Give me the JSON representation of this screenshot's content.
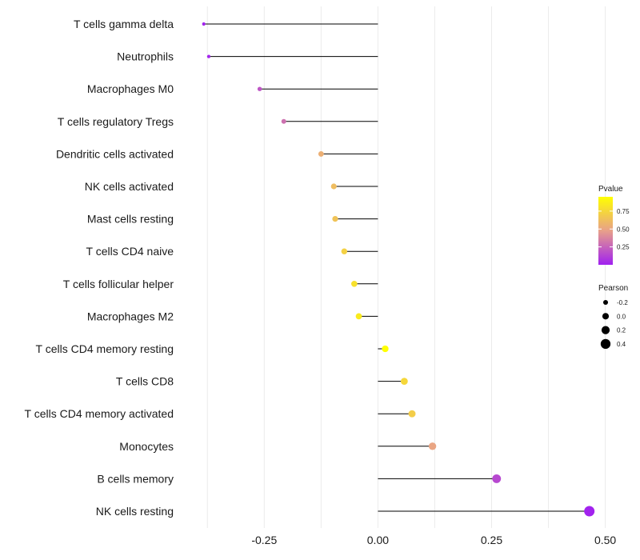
{
  "chart_data": {
    "type": "lollipop",
    "title": "",
    "xlabel": "",
    "ylabel": "",
    "xlim": [
      -0.43,
      0.55
    ],
    "x_ticks": [
      -0.25,
      0.0,
      0.25,
      0.5
    ],
    "x_tick_labels": [
      "-0.25",
      "0.00",
      "0.25",
      "0.50"
    ],
    "grid": "vertical",
    "categories": [
      "T cells gamma delta",
      "Neutrophils",
      "Macrophages M0",
      "T cells regulatory  Tregs",
      "Dendritic cells activated",
      "NK cells activated",
      "Mast cells resting",
      "T cells CD4 naive",
      "T cells follicular helper",
      "Macrophages M2",
      "T cells CD4 memory resting",
      "T cells CD8",
      "T cells CD4 memory activated",
      "Monocytes",
      "B cells memory",
      "NK cells resting"
    ],
    "pearson": [
      -0.383,
      -0.372,
      -0.26,
      -0.207,
      -0.125,
      -0.097,
      -0.094,
      -0.074,
      -0.052,
      -0.042,
      0.016,
      0.058,
      0.075,
      0.12,
      0.261,
      0.465
    ],
    "pvalue": [
      0.01,
      0.02,
      0.2,
      0.3,
      0.55,
      0.62,
      0.65,
      0.72,
      0.8,
      0.85,
      0.95,
      0.75,
      0.7,
      0.5,
      0.15,
      0.01
    ],
    "legend": {
      "pvalue": {
        "title": "Pvalue",
        "ticks": [
          0.25,
          0.5,
          0.75
        ],
        "tick_labels": [
          "0.25",
          "0.50",
          "0.75"
        ],
        "range": [
          0.0,
          0.95
        ],
        "colors": [
          "#a020f0",
          "#e8a08a",
          "#ffff00"
        ]
      },
      "pearson": {
        "title": "Pearson",
        "values": [
          -0.2,
          0.0,
          0.2,
          0.4
        ],
        "labels": [
          "-0.2",
          "0.0",
          "0.2",
          "0.4"
        ]
      },
      "placement": "right"
    }
  }
}
